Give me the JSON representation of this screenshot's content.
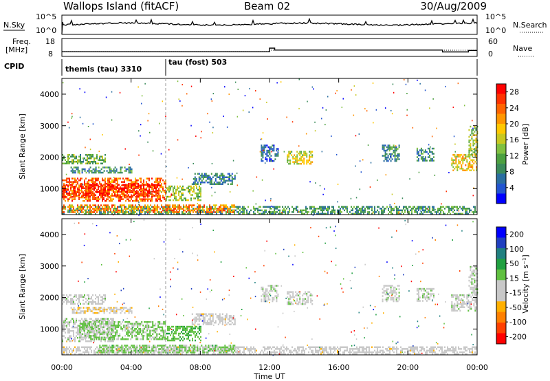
{
  "header": {
    "station": "Wallops Island (fitACF)",
    "beam": "Beam 02",
    "date": "30/Aug/2009"
  },
  "top_panel": {
    "left_label": "N.Sky",
    "right_label": "N.Search",
    "left_ticks": [
      "10^5",
      "10^0"
    ],
    "right_ticks": [
      "10^5",
      "10^0"
    ]
  },
  "freq_panel": {
    "left_label_1": "Freq.",
    "left_label_2": "[MHz]",
    "right_label": "Nave",
    "left_ticks": [
      "18",
      "8"
    ],
    "right_ticks": [
      "60",
      "0"
    ]
  },
  "cpid": {
    "label": "CPID",
    "segments": [
      {
        "name": "themis (tau) 3310",
        "start_hour": 0
      },
      {
        "name": "tau (fost) 503",
        "start_hour": 6
      }
    ]
  },
  "chart_data": [
    {
      "type": "heatmap",
      "quantity": "Power",
      "ylabel": "Slant Range [km]",
      "xlabel": "Time UT",
      "x_ticks": [
        "00:00",
        "04:00",
        "08:00",
        "12:00",
        "16:00",
        "20:00",
        "00:00"
      ],
      "y_ticks": [
        1000,
        2000,
        3000,
        4000
      ],
      "xlim_hours": [
        0,
        24
      ],
      "ylim": [
        180,
        4500
      ],
      "colorbar": {
        "label": "Power [dB]",
        "ticks": [
          "4",
          "8",
          "12",
          "16",
          "20",
          "24",
          "28"
        ],
        "range": [
          0,
          30
        ],
        "colors": [
          "#0000ff",
          "#2255d0",
          "#2a6ea0",
          "#3a8a5a",
          "#4ca040",
          "#80c040",
          "#c8c820",
          "#ffc800",
          "#ff9600",
          "#ff6400",
          "#ff3200",
          "#ff0000"
        ]
      },
      "regions": [
        {
          "t0": 0.0,
          "t1": 6.0,
          "r0": 600,
          "r1": 1350,
          "level": 24
        },
        {
          "t0": 0.0,
          "t1": 5.5,
          "r0": 750,
          "r1": 1150,
          "level": 27
        },
        {
          "t0": 6.0,
          "t1": 8.0,
          "r0": 650,
          "r1": 1100,
          "level": 14
        },
        {
          "t0": 0.0,
          "t1": 2.5,
          "r0": 1800,
          "r1": 2100,
          "level": 12
        },
        {
          "t0": 0.5,
          "t1": 4.0,
          "r0": 1500,
          "r1": 1700,
          "level": 9
        },
        {
          "t0": 7.5,
          "t1": 10.0,
          "r0": 1150,
          "r1": 1500,
          "level": 7
        },
        {
          "t0": 11.5,
          "t1": 12.5,
          "r0": 1900,
          "r1": 2400,
          "level": 6
        },
        {
          "t0": 13.0,
          "t1": 14.5,
          "r0": 1800,
          "r1": 2200,
          "level": 16
        },
        {
          "t0": 18.5,
          "t1": 19.5,
          "r0": 1900,
          "r1": 2400,
          "level": 9
        },
        {
          "t0": 20.5,
          "t1": 21.5,
          "r0": 1900,
          "r1": 2300,
          "level": 8
        },
        {
          "t0": 22.5,
          "t1": 24.0,
          "r0": 1600,
          "r1": 2100,
          "level": 18
        },
        {
          "t0": 23.5,
          "t1": 24.0,
          "r0": 2100,
          "r1": 3000,
          "level": 14
        },
        {
          "t0": 0.0,
          "t1": 24.0,
          "r0": 200,
          "r1": 450,
          "level": 10
        },
        {
          "t0": 0.0,
          "t1": 10.0,
          "r0": 250,
          "r1": 500,
          "level": 22
        }
      ]
    },
    {
      "type": "heatmap",
      "quantity": "Velocity",
      "ylabel": "Slant Range [km]",
      "xlabel": "Time UT",
      "x_ticks": [
        "00:00",
        "04:00",
        "08:00",
        "12:00",
        "16:00",
        "20:00",
        "00:00"
      ],
      "y_ticks": [
        1000,
        2000,
        3000,
        4000
      ],
      "xlim_hours": [
        0,
        24
      ],
      "ylim": [
        180,
        4500
      ],
      "colorbar": {
        "label": "Velocity [m s⁻¹]",
        "ticks": [
          "200",
          "100",
          "50",
          "15",
          "-15",
          "-50",
          "-100",
          "-200"
        ],
        "range": [
          -250,
          250
        ],
        "colors": [
          "#ff0000",
          "#ff4000",
          "#ff8000",
          "#ffb000",
          "#c8c8c8",
          "#c8c8c8",
          "#60c040",
          "#20a040",
          "#208080",
          "#2040c0",
          "#0000ff"
        ]
      },
      "regions": [
        {
          "t0": 0.0,
          "t1": 3.0,
          "r0": 600,
          "r1": 1350,
          "level": 0
        },
        {
          "t0": 1.0,
          "t1": 6.0,
          "r0": 700,
          "r1": 1250,
          "level": 30
        },
        {
          "t0": 6.0,
          "t1": 8.0,
          "r0": 650,
          "r1": 1100,
          "level": 60
        },
        {
          "t0": 0.0,
          "t1": 2.5,
          "r0": 1800,
          "r1": 2100,
          "level": 0
        },
        {
          "t0": 0.5,
          "t1": 4.0,
          "r0": 1500,
          "r1": 1700,
          "level": -60
        },
        {
          "t0": 7.5,
          "t1": 10.0,
          "r0": 1150,
          "r1": 1500,
          "level": -40
        },
        {
          "t0": 11.5,
          "t1": 12.5,
          "r0": 1900,
          "r1": 2400,
          "level": 0
        },
        {
          "t0": 13.0,
          "t1": 14.5,
          "r0": 1800,
          "r1": 2200,
          "level": 0
        },
        {
          "t0": 18.5,
          "t1": 19.5,
          "r0": 1900,
          "r1": 2400,
          "level": 0
        },
        {
          "t0": 20.5,
          "t1": 21.5,
          "r0": 1900,
          "r1": 2300,
          "level": 0
        },
        {
          "t0": 22.5,
          "t1": 24.0,
          "r0": 1600,
          "r1": 2100,
          "level": 0
        },
        {
          "t0": 23.5,
          "t1": 24.0,
          "r0": 2100,
          "r1": 3000,
          "level": 0
        },
        {
          "t0": 0.0,
          "t1": 24.0,
          "r0": 200,
          "r1": 450,
          "level": -40
        },
        {
          "t0": 2.0,
          "t1": 10.0,
          "r0": 250,
          "r1": 500,
          "level": 40
        }
      ]
    }
  ]
}
